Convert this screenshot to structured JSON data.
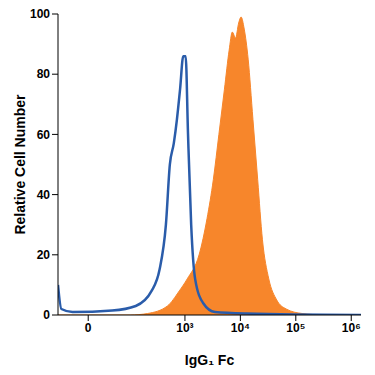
{
  "chart_data": {
    "type": "area",
    "x_label": "IgG₁ Fc",
    "y_label": "Relative Cell Number",
    "log": "x",
    "grid": false,
    "xlim": [
      -58,
      1500000
    ],
    "xticks": [
      0,
      {
        "value": 1000,
        "label": "10³"
      },
      {
        "value": 10000,
        "label": "10⁴"
      },
      {
        "value": 100000,
        "label": "10⁵"
      },
      {
        "value": 1000000,
        "label": "10⁶"
      }
    ],
    "ylim": [
      0,
      100
    ],
    "yticks": [
      0,
      20,
      40,
      60,
      80,
      100
    ],
    "series": [
      {
        "type": "area",
        "color": "#f7862b",
        "x": [
          -58,
          100,
          211,
          483,
          790,
          1099,
          1800,
          2502,
          3254,
          4100,
          5159,
          6280,
          7164,
          8172,
          9324,
          10296,
          11736,
          13824,
          16848,
          20520,
          25020,
          32544,
          45216,
          67104,
          129672,
          347976,
          1500000
        ],
        "values": [
          0,
          0,
          0.5,
          3,
          8,
          12,
          20,
          32,
          45,
          60,
          75,
          88,
          94,
          92,
          97,
          99,
          95,
          85,
          65,
          45,
          25,
          12,
          5,
          2,
          0.5,
          0,
          0
        ]
      },
      {
        "type": "line",
        "color": "#2a5caa",
        "x": [
          -58,
          -49,
          -25,
          42,
          127,
          249,
          347,
          453,
          534,
          629,
          717,
          817,
          932,
          1030,
          1137,
          1296,
          1527,
          2124,
          3474,
          12960,
          1500000
        ],
        "values": [
          10,
          2,
          1,
          1.5,
          3,
          8,
          15,
          30,
          50,
          57,
          65,
          75,
          86,
          86,
          60,
          30,
          12,
          4,
          1,
          0.5,
          0
        ]
      }
    ]
  }
}
